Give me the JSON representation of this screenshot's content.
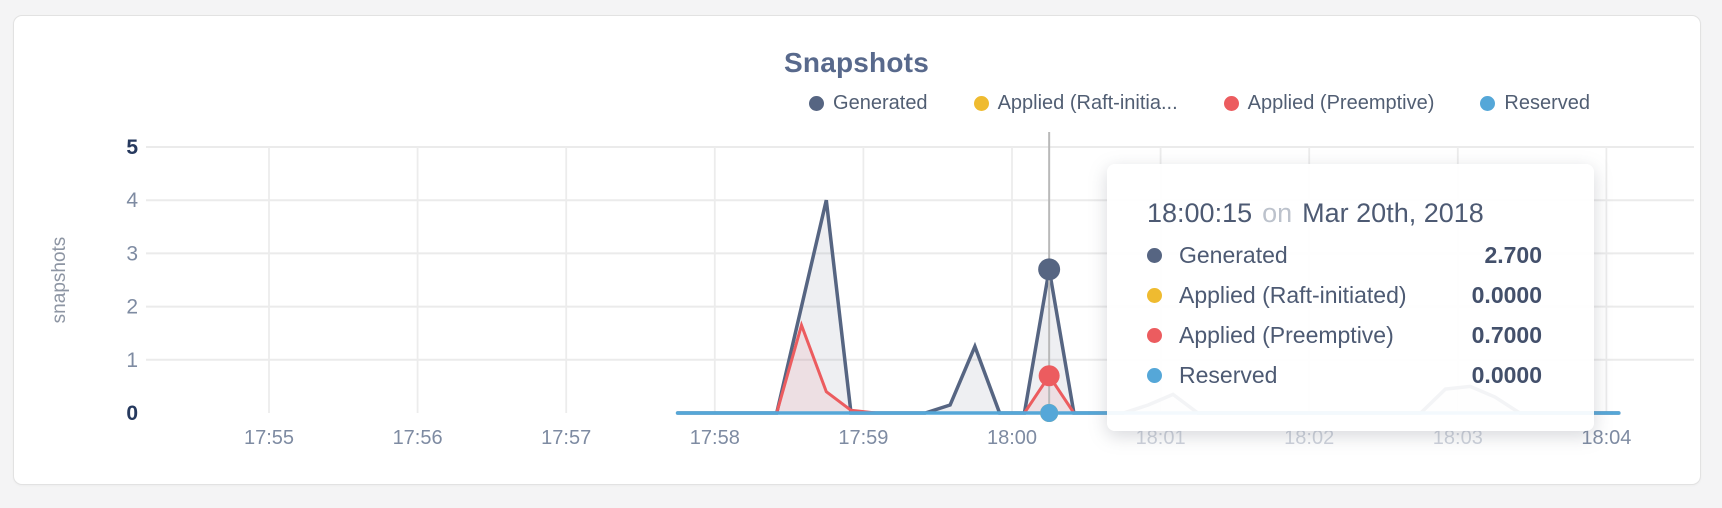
{
  "chart": {
    "title": "Snapshots",
    "ylabel": "snapshots"
  },
  "legend": {
    "items": [
      {
        "label": "Generated",
        "color": "#566582"
      },
      {
        "label": "Applied (Raft-initia...",
        "color": "#efbb30"
      },
      {
        "label": "Applied (Preemptive)",
        "color": "#ec5c5f"
      },
      {
        "label": "Reserved",
        "color": "#55a7d8"
      }
    ]
  },
  "tooltip": {
    "time": "18:00:15",
    "on": "on",
    "date": "Mar 20th, 2018",
    "rows": [
      {
        "label": "Generated",
        "value": "2.700",
        "color": "#566582"
      },
      {
        "label": "Applied (Raft-initiated)",
        "value": "0.0000",
        "color": "#efbb30"
      },
      {
        "label": "Applied (Preemptive)",
        "value": "0.7000",
        "color": "#ec5c5f"
      },
      {
        "label": "Reserved",
        "value": "0.0000",
        "color": "#55a7d8"
      }
    ]
  },
  "chart_data": {
    "type": "area",
    "title": "Snapshots",
    "ylabel": "snapshots",
    "ylim": [
      0,
      5
    ],
    "grid": true,
    "legend_position": "top-right",
    "y_ticks": [
      {
        "label": "0",
        "value": 0,
        "bold": true
      },
      {
        "label": "1",
        "value": 1,
        "bold": false
      },
      {
        "label": "2",
        "value": 2,
        "bold": false
      },
      {
        "label": "3",
        "value": 3,
        "bold": false
      },
      {
        "label": "4",
        "value": 4,
        "bold": false
      },
      {
        "label": "5",
        "value": 5,
        "bold": true
      }
    ],
    "x_ticks": [
      {
        "label": "17:55",
        "time": "17:55:00",
        "faded": false
      },
      {
        "label": "17:56",
        "time": "17:56:00",
        "faded": false
      },
      {
        "label": "17:57",
        "time": "17:57:00",
        "faded": false
      },
      {
        "label": "17:58",
        "time": "17:58:00",
        "faded": false
      },
      {
        "label": "17:59",
        "time": "17:59:00",
        "faded": false
      },
      {
        "label": "18:00",
        "time": "18:00:00",
        "faded": false
      },
      {
        "label": "18:01",
        "time": "18:01:00",
        "faded": true
      },
      {
        "label": "18:02",
        "time": "18:02:00",
        "faded": true
      },
      {
        "label": "18:03",
        "time": "18:03:00",
        "faded": true
      },
      {
        "label": "18:04",
        "time": "18:04:00",
        "faded": false
      }
    ],
    "series": [
      {
        "name": "Generated",
        "color": "#566582",
        "fill": "rgba(86,101,130,0.10)",
        "width": 3.5,
        "points": [
          [
            "17:57:45",
            0
          ],
          [
            "17:58:25",
            0
          ],
          [
            "17:58:45",
            4
          ],
          [
            "17:58:55",
            0
          ],
          [
            "17:59:25",
            0
          ],
          [
            "17:59:35",
            0.15
          ],
          [
            "17:59:45",
            1.25
          ],
          [
            "17:59:55",
            0
          ],
          [
            "18:00:05",
            0
          ],
          [
            "18:00:15",
            2.7
          ],
          [
            "18:00:25",
            0
          ],
          [
            "18:00:45",
            0
          ],
          [
            "18:00:55",
            0.15
          ],
          [
            "18:01:05",
            0.35
          ],
          [
            "18:01:15",
            0
          ],
          [
            "18:02:45",
            0
          ],
          [
            "18:02:55",
            0.45
          ],
          [
            "18:03:05",
            0.5
          ],
          [
            "18:03:15",
            0.3
          ],
          [
            "18:03:25",
            0
          ],
          [
            "18:04:05",
            0
          ]
        ]
      },
      {
        "name": "Applied (Raft-initiated)",
        "color": "#efbb30",
        "fill": null,
        "width": 2.5,
        "points": [
          [
            "17:57:45",
            0
          ],
          [
            "18:04:05",
            0
          ]
        ]
      },
      {
        "name": "Applied (Preemptive)",
        "color": "#ec5c5f",
        "fill": "rgba(236,92,95,0.10)",
        "width": 3,
        "points": [
          [
            "17:57:45",
            0
          ],
          [
            "17:58:25",
            0
          ],
          [
            "17:58:35",
            1.65
          ],
          [
            "17:58:45",
            0.4
          ],
          [
            "17:58:55",
            0.05
          ],
          [
            "17:59:05",
            0
          ],
          [
            "18:00:05",
            0
          ],
          [
            "18:00:15",
            0.7
          ],
          [
            "18:00:25",
            0
          ],
          [
            "18:04:05",
            0
          ]
        ]
      },
      {
        "name": "Reserved",
        "color": "#55a7d8",
        "fill": null,
        "width": 3.5,
        "points": [
          [
            "17:57:45",
            0
          ],
          [
            "18:04:05",
            0
          ]
        ]
      }
    ],
    "hover": {
      "time": "18:00:15",
      "markers": [
        {
          "series": "Generated",
          "value": 2.7,
          "r": 11
        },
        {
          "series": "Applied (Raft-initiated)",
          "value": 0,
          "r": 9
        },
        {
          "series": "Applied (Preemptive)",
          "value": 0.7,
          "r": 10.5
        },
        {
          "series": "Reserved",
          "value": 0,
          "r": 9
        }
      ]
    }
  }
}
